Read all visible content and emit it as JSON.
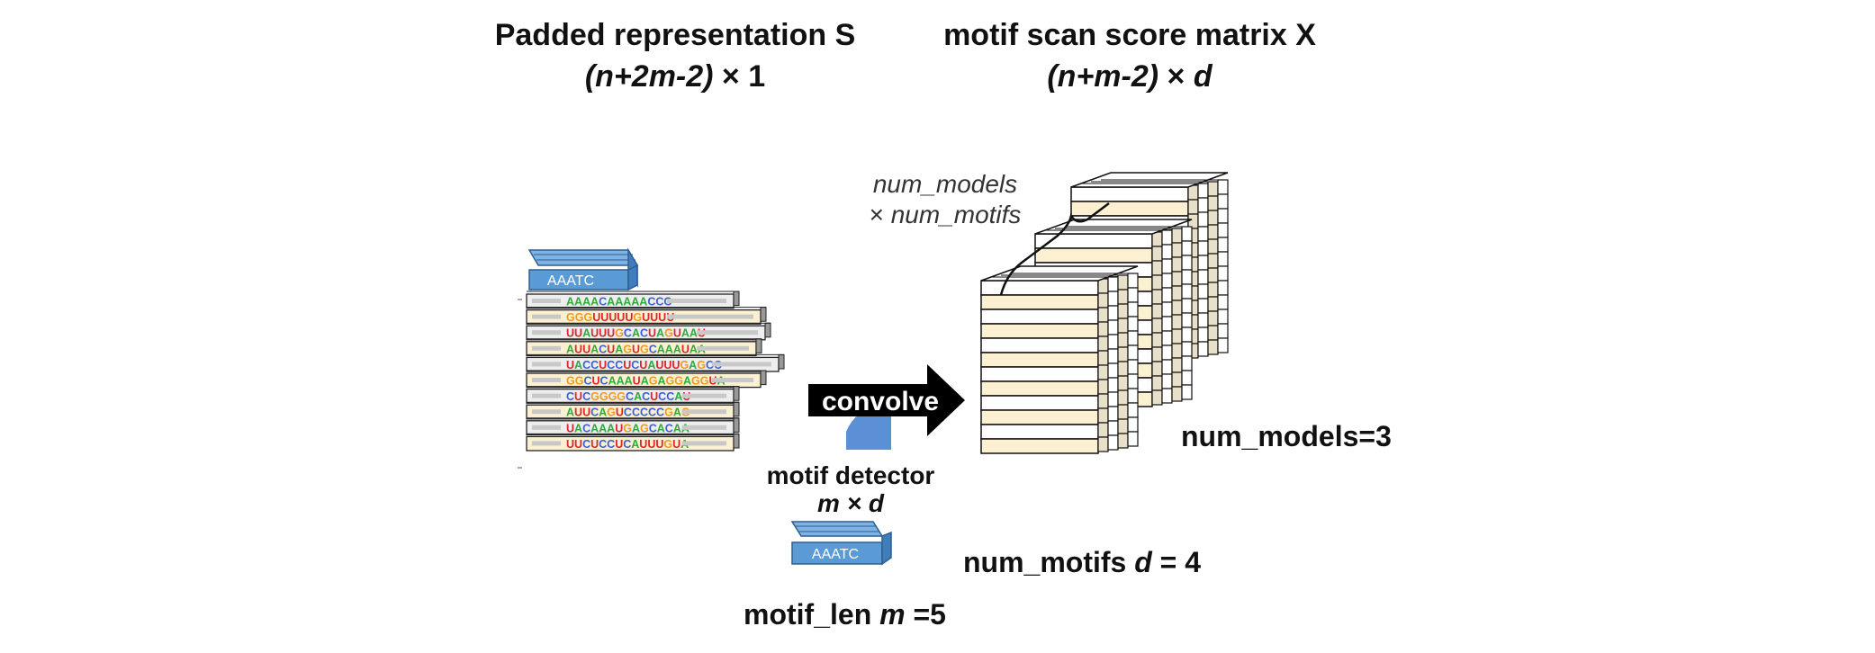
{
  "left_header": {
    "title": "Padded representation S",
    "dim_paren": "(n+2m-2)",
    "dim_rest": " × 1"
  },
  "right_header": {
    "title": "motif scan score matrix X",
    "dim_paren": "(n+m-2)",
    "dim_times": " × ",
    "dim_d": "d"
  },
  "stack_label": {
    "line1": "num_models",
    "line2_prefix": "× ",
    "line2_var": "num_motifs"
  },
  "motif_box_label": "AAATC",
  "convolve_label": "convolve",
  "detector": {
    "line1": "motif detector",
    "line2": "m × d"
  },
  "detector_box_label": "AAATC",
  "num_models_label": "num_models=3",
  "num_motifs": {
    "prefix": "num_motifs ",
    "var": "d",
    "suffix": " = 4"
  },
  "motif_len": {
    "prefix": "motif_len ",
    "var": "m",
    "suffix": " =5"
  },
  "sequences": [
    "AAAACAAAAACCC",
    "GGGUUUUUGUUUU",
    "UUAUUUGCACUAGUAAU",
    "AUUACUAGUGCAAAUAA",
    "UACCUCCUCUAUUUGAGCC",
    "GGCUCAAAUAGAGGAGGUA",
    "CUCGGGGCACUCCAU",
    "AUUCAGUCCCCCGAG",
    "UACAAAUGAGCACAA",
    "UUCUCCUCAUUUGUA"
  ],
  "colors": {
    "A": "#2eab3a",
    "C": "#3a5fd6",
    "G": "#f29a1c",
    "U": "#e0242a",
    "box_blue": "#5b9bd5",
    "cream": "#fbf1d2"
  }
}
